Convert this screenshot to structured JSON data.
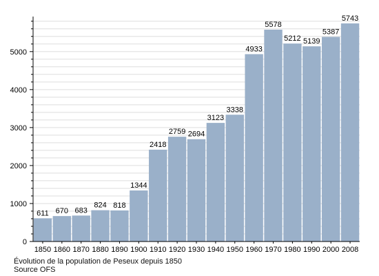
{
  "chart_data": {
    "type": "bar",
    "categories": [
      "1850",
      "1860",
      "1870",
      "1880",
      "1890",
      "1900",
      "1910",
      "1920",
      "1930",
      "1940",
      "1950",
      "1960",
      "1970",
      "1980",
      "1990",
      "2000",
      "2008"
    ],
    "values": [
      611,
      670,
      683,
      824,
      818,
      1344,
      2418,
      2759,
      2694,
      3123,
      3338,
      4933,
      5578,
      5212,
      5139,
      5387,
      5743
    ],
    "value_labels": [
      "611",
      "670",
      "683",
      "824",
      "818",
      "1344",
      "2418",
      "2759",
      "2694",
      "3123",
      "3338",
      "4933",
      "5578",
      "5212",
      "5139",
      "5387",
      "5743"
    ],
    "ylim": [
      0,
      5850
    ],
    "yticks": [
      0,
      1000,
      2000,
      3000,
      4000,
      5000
    ],
    "ytick_labels": [
      "0",
      "1000",
      "2000",
      "3000",
      "4000",
      "5000"
    ],
    "grid": true,
    "bar_color": "#9ab0c9",
    "title": "",
    "xlabel": "",
    "ylabel": ""
  },
  "caption": {
    "line1": "Évolution de la population de Peseux depuis 1850",
    "line2": "Source OFS"
  }
}
